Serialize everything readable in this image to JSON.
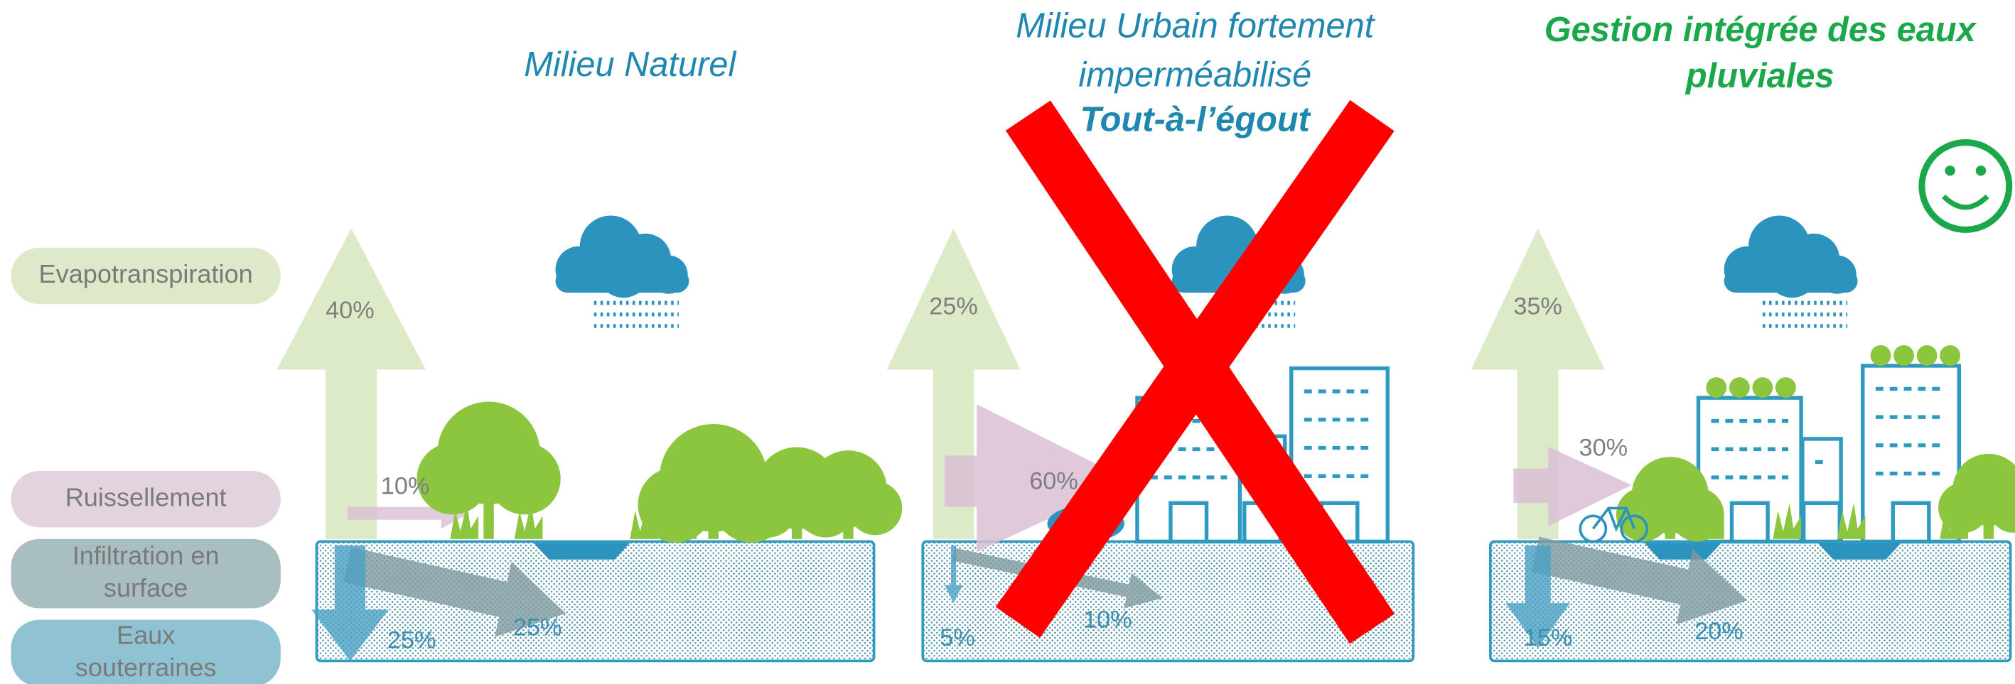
{
  "legend": [
    {
      "lines": [
        "Evapotranspiration"
      ]
    },
    {
      "lines": [
        "Ruissellement"
      ]
    },
    {
      "lines": [
        "Infiltration en",
        "surface"
      ]
    },
    {
      "lines": [
        "Eaux",
        "souterraines"
      ]
    }
  ],
  "panels": [
    {
      "title": [
        "Milieu Naturel"
      ],
      "evapotranspiration": "40%",
      "runoff": "10%",
      "infiltration": "25%",
      "groundwater": "25%"
    },
    {
      "title": [
        "Milieu Urbain fortement",
        "imperméabilisé"
      ],
      "subtitle": "Tout-à-l’égout",
      "evapotranspiration": "25%",
      "runoff": "60%",
      "infiltration": "10%",
      "groundwater": "5%"
    },
    {
      "title": [
        "Gestion intégrée des eaux",
        "pluviales"
      ],
      "evapotranspiration": "35%",
      "runoff": "30%",
      "infiltration": "20%",
      "groundwater": "15%"
    }
  ]
}
